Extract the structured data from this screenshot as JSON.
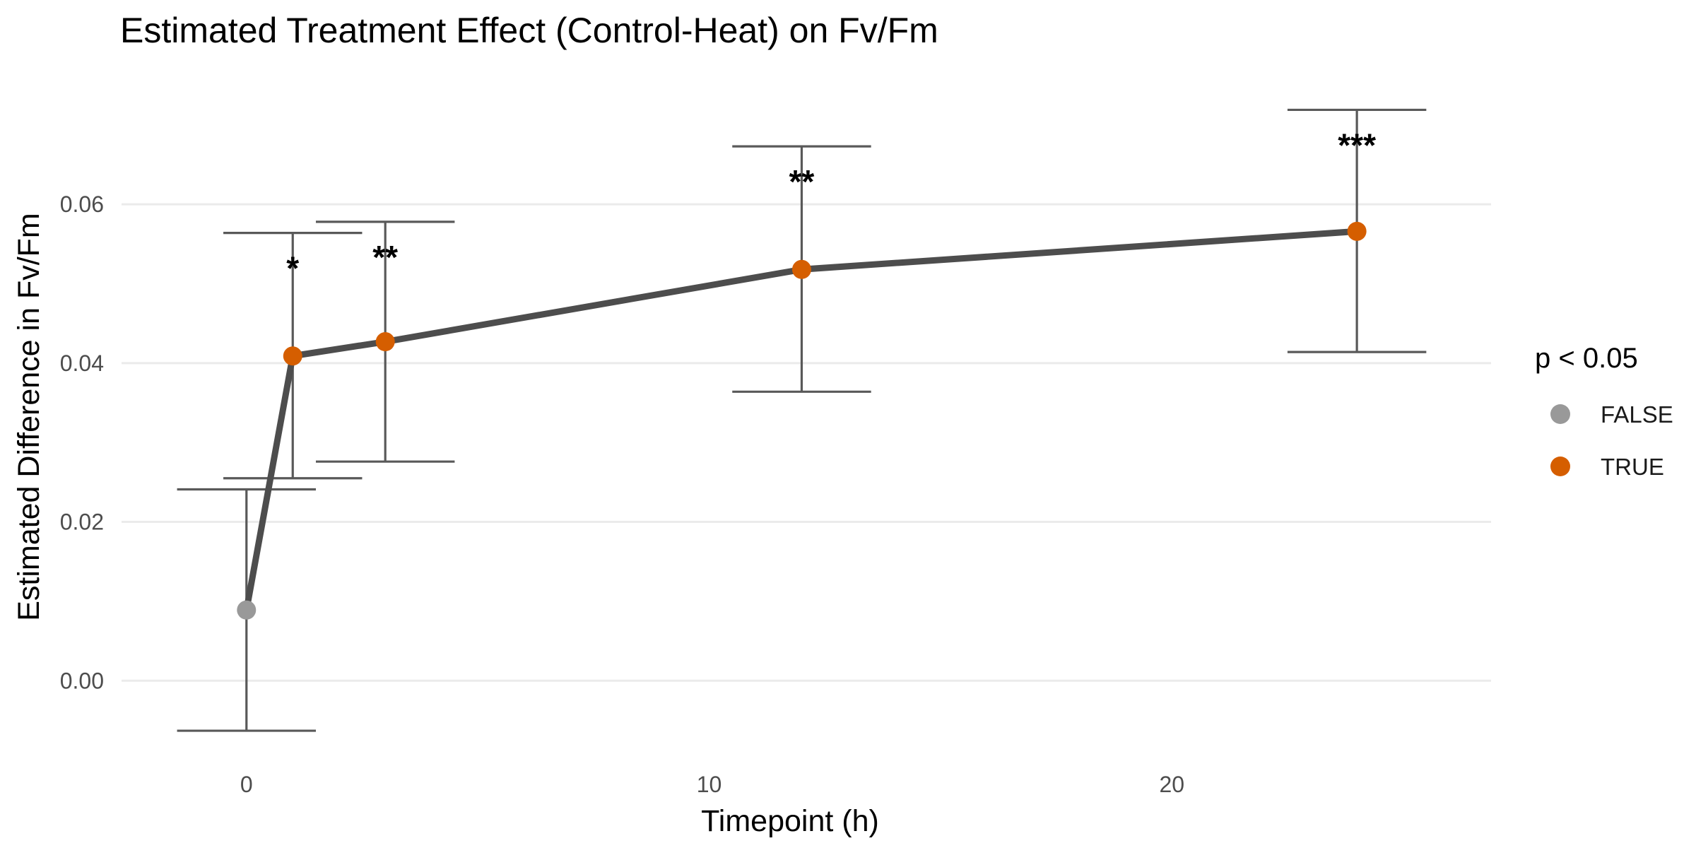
{
  "chart_data": {
    "type": "line",
    "title": "Estimated Treatment Effect (Control-Heat) on Fv/Fm",
    "xlabel": "Timepoint (h)",
    "ylabel": "Estimated Difference in Fv/Fm",
    "xlim": [
      -2.7,
      26.9
    ],
    "ylim": [
      -0.0095,
      0.0755
    ],
    "x_ticks": [
      0,
      10,
      20
    ],
    "x_tick_labels": [
      "0",
      "10",
      "20"
    ],
    "y_ticks": [
      0.0,
      0.02,
      0.04,
      0.06
    ],
    "y_tick_labels": [
      "0.00",
      "0.02",
      "0.04",
      "0.06"
    ],
    "grid": "horizontal",
    "errorbar_halfwidth": 1.5,
    "points": [
      {
        "x": 0,
        "y": 0.0089,
        "lower": -0.0063,
        "upper": 0.0241,
        "significant": "FALSE",
        "label": ""
      },
      {
        "x": 1,
        "y": 0.0409,
        "lower": 0.0255,
        "upper": 0.0564,
        "significant": "TRUE",
        "label": "*"
      },
      {
        "x": 3,
        "y": 0.0427,
        "lower": 0.0276,
        "upper": 0.0578,
        "significant": "TRUE",
        "label": "**"
      },
      {
        "x": 12,
        "y": 0.0518,
        "lower": 0.0364,
        "upper": 0.0673,
        "significant": "TRUE",
        "label": "**"
      },
      {
        "x": 24,
        "y": 0.0566,
        "lower": 0.0414,
        "upper": 0.0719,
        "significant": "TRUE",
        "label": "***"
      }
    ],
    "legend": {
      "title": "p < 0.05",
      "position": "right",
      "entries": [
        {
          "label": "FALSE",
          "color": "#999999"
        },
        {
          "label": "TRUE",
          "color": "#D55E00"
        }
      ]
    },
    "colors": {
      "line": "#4d4d4d",
      "errorbar": "#595959",
      "grid": "#ebebeb"
    }
  }
}
